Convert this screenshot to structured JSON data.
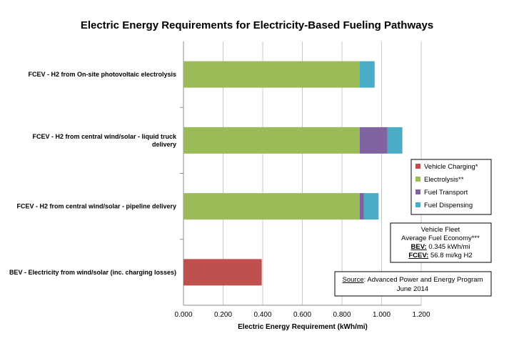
{
  "chart_data": {
    "type": "bar",
    "orientation": "horizontal",
    "stacked": true,
    "title": "Electric Energy Requirements for Electricity-Based Fueling Pathways",
    "xlabel": "Electric Energy Requirement (kWh/mi)",
    "ylabel": "",
    "xlim": [
      0,
      1.2
    ],
    "xticks": [
      "0.000",
      "0.200",
      "0.400",
      "0.600",
      "0.800",
      "1.000",
      "1.200"
    ],
    "grid": true,
    "legend_position": "right",
    "categories": [
      {
        "lines": [
          "FCEV - H2 from On-site photovoltaic electrolysis"
        ]
      },
      {
        "lines": [
          "FCEV - H2 from central wind/solar - liquid truck",
          "delivery"
        ]
      },
      {
        "lines": [
          "FCEV - H2 from central wind/solar - pipeline delivery"
        ]
      },
      {
        "lines": [
          "BEV - Electricity from wind/solar (inc. charging losses)"
        ]
      }
    ],
    "series": [
      {
        "name": "Vehicle Charging*",
        "color": "#c0504d",
        "values": [
          0,
          0,
          0,
          0.395
        ]
      },
      {
        "name": "Electrolysis**",
        "color": "#9bbb59",
        "values": [
          0.89,
          0.89,
          0.89,
          0
        ]
      },
      {
        "name": "Fuel Transport",
        "color": "#8064a2",
        "values": [
          0,
          0.14,
          0.02,
          0
        ]
      },
      {
        "name": "Fuel Dispensing",
        "color": "#4bacc6",
        "values": [
          0.075,
          0.075,
          0.075,
          0
        ]
      }
    ]
  },
  "info_box": {
    "line1": "Vehicle Fleet",
    "line2": "Average Fuel Economy***",
    "bev_label": "BEV:",
    "bev_value": " 0.345 kWh/mi",
    "fcev_label": "FCEV:",
    "fcev_value": " 56.8 mi/kg H2"
  },
  "source_box": {
    "label": "Source",
    "text": ": Advanced Power and Energy Program",
    "date": "June 2014"
  }
}
